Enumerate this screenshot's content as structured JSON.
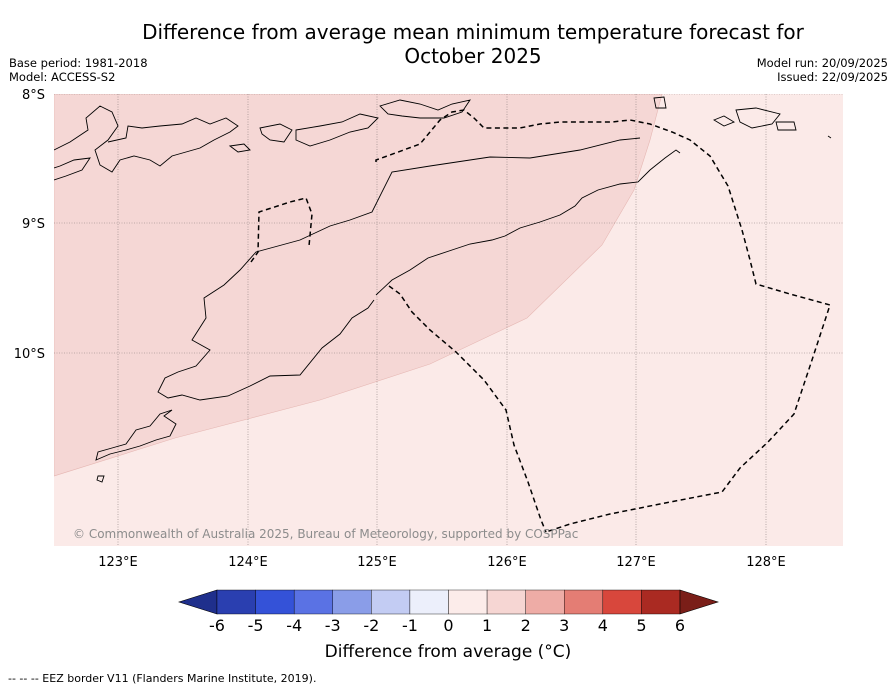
{
  "title_line1": "Difference from average mean minimum temperature forecast for",
  "title_line2": "October 2025",
  "base_period": "Base period: 1981-2018",
  "model": "Model: ACCESS-S2",
  "model_run": "Model run: 20/09/2025",
  "issued": "Issued: 22/09/2025",
  "copyright": "© Commonwealth of Australia 2025, Bureau of Meteorology, supported by COSPPac",
  "lat_labels": [
    "8°S",
    "9°S",
    "10°S"
  ],
  "lon_labels": [
    "123°E",
    "124°E",
    "125°E",
    "126°E",
    "127°E",
    "128°E"
  ],
  "legend": {
    "title": "Difference from average (°C)",
    "ticks": [
      "-6",
      "-5",
      "-4",
      "-3",
      "-2",
      "-1",
      "0",
      "1",
      "2",
      "3",
      "4",
      "5",
      "6"
    ],
    "colors": [
      "#1f2f8c",
      "#2a3fb0",
      "#3452d8",
      "#5a72e4",
      "#8a9de8",
      "#c3ccf3",
      "#eceffb",
      "#fcecea",
      "#f6d6d3",
      "#eeaca6",
      "#e47d74",
      "#d8473c",
      "#aa2a22",
      "#7a1e18"
    ]
  },
  "regions": [
    {
      "name": "1 to 2",
      "color": "#f5d7d5"
    },
    {
      "name": "0 to 1",
      "color": "#fbeae8"
    }
  ],
  "footnote": "-- -- -- EEZ border V11 (Flanders Marine Institute, 2019)."
}
